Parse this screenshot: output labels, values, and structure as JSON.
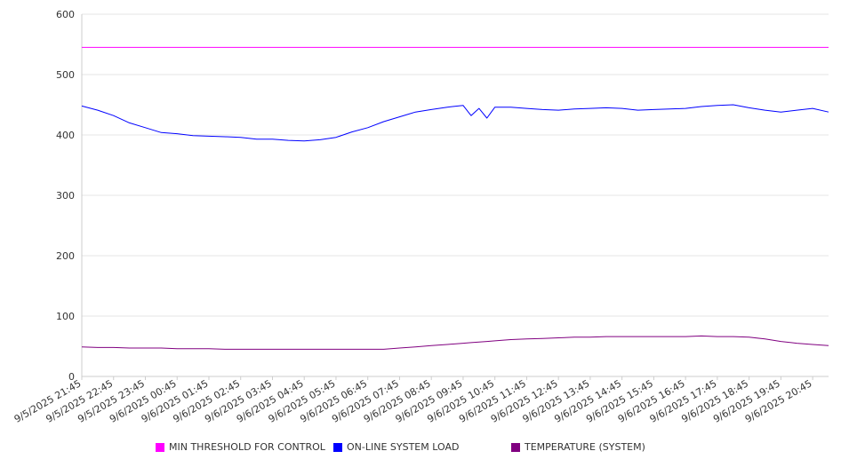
{
  "chart_data": {
    "type": "line",
    "title": "",
    "xlabel": "",
    "ylabel": "",
    "ylim": [
      0,
      600
    ],
    "yticks": [
      "0",
      "100",
      "200",
      "300",
      "400",
      "500",
      "600"
    ],
    "x_tick_labels": [
      "9/5/2025 21:45",
      "9/5/2025 22:45",
      "9/5/2025 23:45",
      "9/6/2025 00:45",
      "9/6/2025 01:45",
      "9/6/2025 02:45",
      "9/6/2025 03:45",
      "9/6/2025 04:45",
      "9/6/2025 05:45",
      "9/6/2025 06:45",
      "9/6/2025 07:45",
      "9/6/2025 08:45",
      "9/6/2025 09:45",
      "9/6/2025 10:45",
      "9/6/2025 11:45",
      "9/6/2025 12:45",
      "9/6/2025 13:45",
      "9/6/2025 14:45",
      "9/6/2025 15:45",
      "9/6/2025 16:45",
      "9/6/2025 17:45",
      "9/6/2025 18:45",
      "9/6/2025 19:45",
      "9/6/2025 20:45"
    ],
    "x": [
      "9/5/2025 21:45",
      "9/5/2025 22:15",
      "9/5/2025 22:45",
      "9/5/2025 23:15",
      "9/5/2025 23:45",
      "9/6/2025 00:15",
      "9/6/2025 00:45",
      "9/6/2025 01:15",
      "9/6/2025 01:45",
      "9/6/2025 02:15",
      "9/6/2025 02:45",
      "9/6/2025 03:15",
      "9/6/2025 03:45",
      "9/6/2025 04:15",
      "9/6/2025 04:45",
      "9/6/2025 05:15",
      "9/6/2025 05:45",
      "9/6/2025 06:15",
      "9/6/2025 06:45",
      "9/6/2025 07:15",
      "9/6/2025 07:45",
      "9/6/2025 08:15",
      "9/6/2025 08:45",
      "9/6/2025 09:15",
      "9/6/2025 09:45",
      "9/6/2025 10:00",
      "9/6/2025 10:15",
      "9/6/2025 10:30",
      "9/6/2025 10:45",
      "9/6/2025 11:15",
      "9/6/2025 11:45",
      "9/6/2025 12:15",
      "9/6/2025 12:45",
      "9/6/2025 13:15",
      "9/6/2025 13:45",
      "9/6/2025 14:15",
      "9/6/2025 14:45",
      "9/6/2025 15:15",
      "9/6/2025 15:45",
      "9/6/2025 16:15",
      "9/6/2025 16:45",
      "9/6/2025 17:15",
      "9/6/2025 17:45",
      "9/6/2025 18:15",
      "9/6/2025 18:45",
      "9/6/2025 19:15",
      "9/6/2025 19:45",
      "9/6/2025 20:15",
      "9/6/2025 20:45",
      "9/6/2025 21:15"
    ],
    "series": [
      {
        "name": "MIN THRESHOLD FOR CONTROL",
        "color": "#ff00ff",
        "values": [
          545,
          545,
          545,
          545,
          545,
          545,
          545,
          545,
          545,
          545,
          545,
          545,
          545,
          545,
          545,
          545,
          545,
          545,
          545,
          545,
          545,
          545,
          545,
          545,
          545,
          545,
          545,
          545,
          545,
          545,
          545,
          545,
          545,
          545,
          545,
          545,
          545,
          545,
          545,
          545,
          545,
          545,
          545,
          545,
          545,
          545,
          545,
          545,
          545,
          545
        ]
      },
      {
        "name": "ON-LINE SYSTEM LOAD",
        "color": "#0000ff",
        "values": [
          448,
          441,
          432,
          420,
          412,
          404,
          402,
          399,
          398,
          397,
          396,
          393,
          393,
          391,
          390,
          392,
          396,
          405,
          412,
          422,
          430,
          438,
          442,
          446,
          449,
          432,
          444,
          428,
          446,
          446,
          444,
          442,
          441,
          443,
          444,
          445,
          444,
          441,
          442,
          443,
          444,
          447,
          449,
          450,
          445,
          441,
          438,
          441,
          444,
          438
        ]
      },
      {
        "name": "TEMPERATURE (SYSTEM)",
        "color": "#800080",
        "values": [
          49,
          48,
          48,
          47,
          47,
          47,
          46,
          46,
          46,
          45,
          45,
          45,
          45,
          45,
          45,
          45,
          45,
          45,
          45,
          45,
          47,
          49,
          51,
          53,
          55,
          56,
          57,
          58,
          59,
          61,
          62,
          63,
          64,
          65,
          65,
          66,
          66,
          66,
          66,
          66,
          66,
          67,
          66,
          66,
          65,
          62,
          58,
          55,
          53,
          51
        ]
      }
    ],
    "grid": true,
    "legend_position": "bottom"
  }
}
